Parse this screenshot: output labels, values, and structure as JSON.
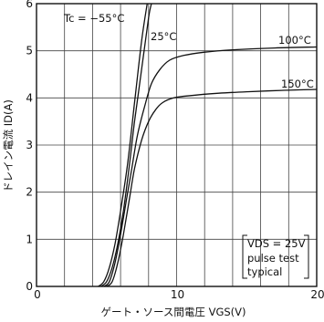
{
  "chart_data": {
    "type": "line",
    "xlabel": "ゲート・ソース間電圧 VGS(V)",
    "ylabel": "ドレイン電流 ID(A)",
    "xlim": [
      0,
      20
    ],
    "ylim": [
      0,
      6
    ],
    "xticks": [
      {
        "v": 0,
        "label": "0"
      },
      {
        "v": 10,
        "label": "10"
      },
      {
        "v": 20,
        "label": "20"
      }
    ],
    "yticks": [
      {
        "v": 0,
        "label": "0"
      },
      {
        "v": 1,
        "label": "1"
      },
      {
        "v": 2,
        "label": "2"
      },
      {
        "v": 3,
        "label": "3"
      },
      {
        "v": 4,
        "label": "4"
      },
      {
        "v": 5,
        "label": "5"
      },
      {
        "v": 6,
        "label": "6"
      }
    ],
    "grid": true,
    "series": [
      {
        "name": "Tc = -55°C",
        "x": [
          4.4,
          4.8,
          5.2,
          5.6,
          6.0,
          6.5,
          7.0,
          7.5,
          7.9
        ],
        "y": [
          0,
          0.1,
          0.4,
          0.9,
          1.6,
          2.6,
          3.9,
          5.2,
          6.0
        ]
      },
      {
        "name": "25°C",
        "x": [
          4.6,
          5.0,
          5.4,
          5.8,
          6.2,
          6.6,
          7.0,
          7.5,
          8.0,
          8.2
        ],
        "y": [
          0,
          0.1,
          0.4,
          0.9,
          1.6,
          2.5,
          3.5,
          4.6,
          5.7,
          6.0
        ]
      },
      {
        "name": "100°C",
        "x": [
          4.8,
          5.2,
          5.6,
          6.0,
          6.4,
          6.8,
          7.2,
          7.7,
          8.2,
          8.8,
          9.5,
          10.5,
          12,
          14,
          17,
          20
        ],
        "y": [
          0,
          0.1,
          0.5,
          1.1,
          1.8,
          2.5,
          3.2,
          3.8,
          4.3,
          4.6,
          4.8,
          4.9,
          4.97,
          5.02,
          5.06,
          5.08
        ]
      },
      {
        "name": "150°C",
        "x": [
          5.0,
          5.4,
          5.8,
          6.2,
          6.6,
          7.0,
          7.5,
          8.0,
          8.5,
          9.0,
          9.8,
          11,
          13,
          15,
          17.5,
          20
        ],
        "y": [
          0,
          0.1,
          0.5,
          1.1,
          1.8,
          2.5,
          3.1,
          3.5,
          3.75,
          3.9,
          4.0,
          4.05,
          4.1,
          4.13,
          4.16,
          4.18
        ]
      }
    ],
    "annotations": {
      "tc_label": "Tc = −55°C",
      "label_25": "25°C",
      "label_100": "100°C",
      "label_150": "150°C",
      "conditions": [
        "VDS = 25V",
        "pulse test",
        "typical"
      ]
    }
  }
}
